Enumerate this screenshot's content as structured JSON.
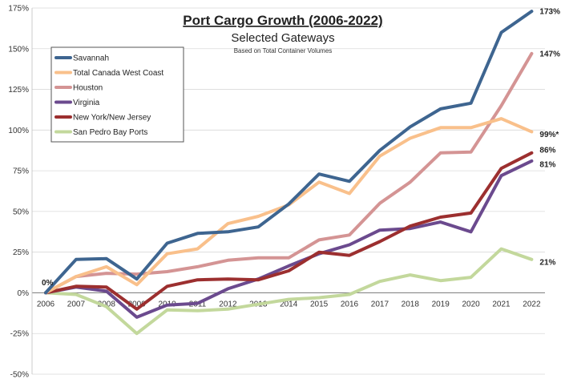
{
  "chart_data": {
    "type": "line",
    "title": "Port Cargo Growth (2006-2022)",
    "subtitle": "Selected Gateways",
    "note": "Based on Total Container Volumes",
    "xlabel": "",
    "ylabel": "",
    "ylim": [
      -50,
      175
    ],
    "yticks": [
      -50,
      -25,
      0,
      25,
      50,
      75,
      100,
      125,
      150,
      175
    ],
    "ytick_labels": [
      "-50%",
      "-25%",
      "0%",
      "25%",
      "50%",
      "75%",
      "100%",
      "125%",
      "150%",
      "175%"
    ],
    "x": [
      "2006",
      "2007",
      "2008",
      "2009",
      "2010",
      "2011",
      "2012",
      "2013",
      "2014",
      "2015",
      "2016",
      "2017",
      "2018",
      "2019",
      "2020",
      "2021",
      "2022"
    ],
    "grid": true,
    "legend_position": "top-left",
    "start_label": "0%",
    "series": [
      {
        "name": "Savannah",
        "color": "#3e6590",
        "values": [
          0,
          20.5,
          21,
          8.5,
          30.5,
          36.5,
          37.5,
          40.5,
          54.5,
          73,
          68.5,
          87.5,
          102,
          113,
          116.5,
          160,
          173
        ],
        "end_label": "173%"
      },
      {
        "name": "Total Canada West Coast",
        "color": "#f9c08b",
        "values": [
          0,
          10,
          16,
          5,
          24,
          27,
          42.5,
          47,
          54,
          68,
          61,
          84,
          95,
          101.5,
          101.5,
          107,
          99
        ],
        "end_label": "99%*"
      },
      {
        "name": "Houston",
        "color": "#d49494",
        "values": [
          0,
          10,
          12,
          11.5,
          13,
          16,
          20,
          21.5,
          21.5,
          32.5,
          35.5,
          55,
          68,
          86,
          86.5,
          115,
          147
        ],
        "end_label": "147%"
      },
      {
        "name": "Virginia",
        "color": "#6b4a8e",
        "values": [
          0,
          3.5,
          1,
          -15,
          -7.5,
          -6.5,
          2.5,
          8.5,
          16.5,
          24,
          29.5,
          38.5,
          39.5,
          43.5,
          37.5,
          72,
          81
        ],
        "end_label": "81%"
      },
      {
        "name": "New York/New Jersey",
        "color": "#9c2f2f",
        "values": [
          0,
          4,
          3.5,
          -10,
          4,
          8,
          8.5,
          8,
          13.5,
          25,
          23,
          31.5,
          41,
          46.5,
          49,
          76.5,
          86
        ],
        "end_label": "86%"
      },
      {
        "name": "San Pedro Bay Ports",
        "color": "#c3d89c",
        "values": [
          0,
          -1,
          -8.5,
          -25,
          -10.5,
          -11,
          -10,
          -7,
          -4,
          -3,
          -1,
          7,
          11,
          7.5,
          9.5,
          27,
          20.5
        ],
        "end_label": "21%"
      }
    ]
  }
}
